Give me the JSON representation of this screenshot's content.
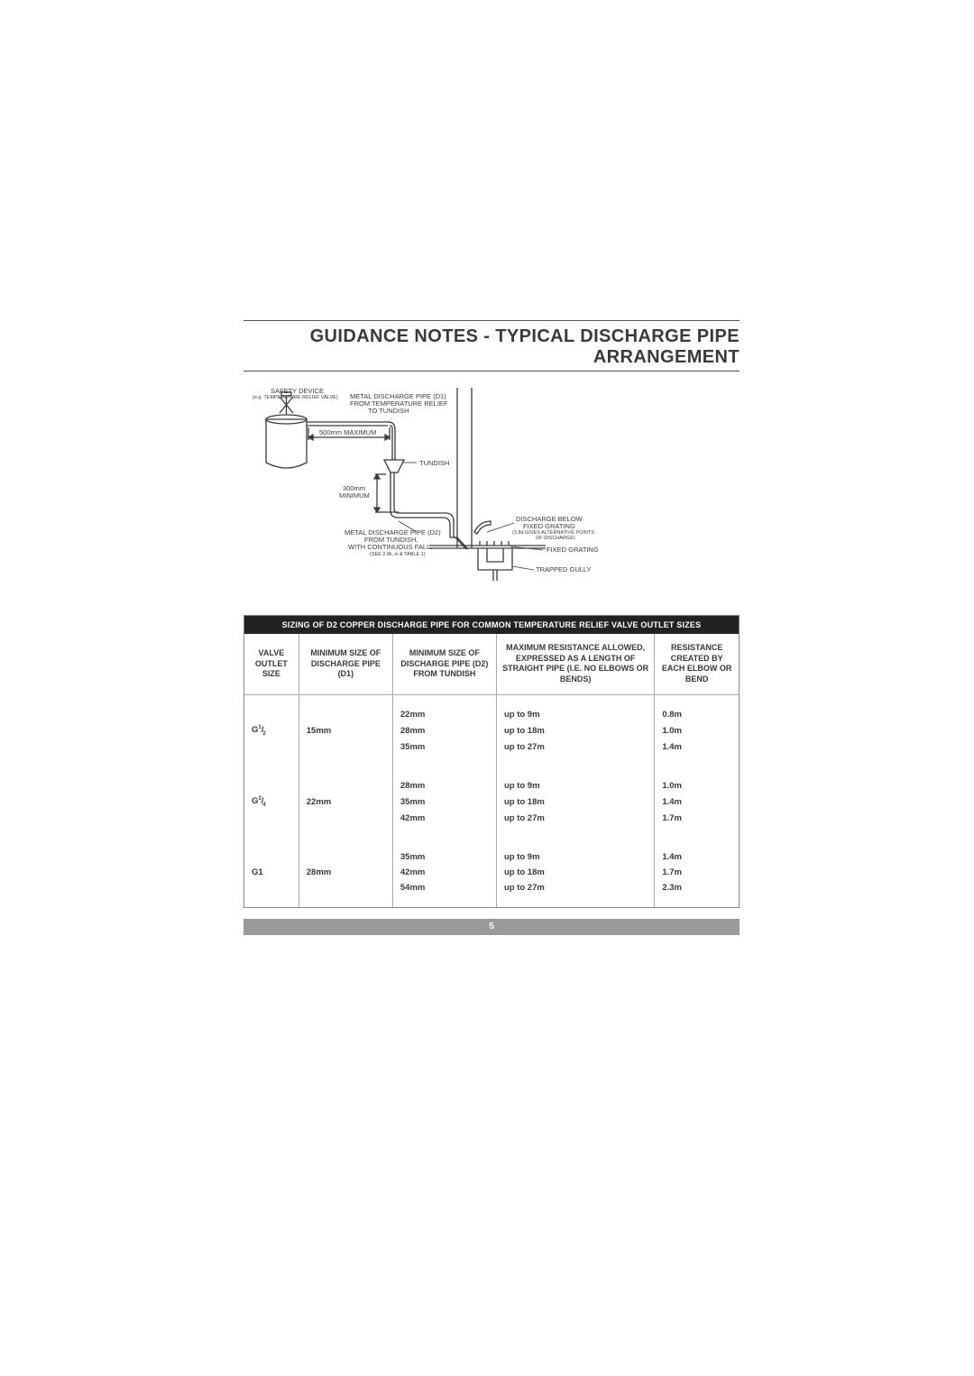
{
  "title": "GUIDANCE NOTES - TYPICAL DISCHARGE PIPE ARRANGEMENT",
  "diagram": {
    "safety_device": "SAFETY DEVICE",
    "safety_device_note": "(e.g. TEMPERATURE RELIEF VALVE)",
    "d1_label_1": "METAL DISCHARGE PIPE (D1)",
    "d1_label_2": "FROM TEMPERATURE RELIEF",
    "d1_label_3": "TO TUNDISH",
    "max_label": "500mm MAXIMUM",
    "tundish": "TUNDISH",
    "min_label_1": "300mm",
    "min_label_2": "MINIMUM",
    "d2_label_1": "METAL DISCHARGE PIPE (D2)",
    "d2_label_2": "FROM TUNDISH,",
    "d2_label_3": "WITH CONTINUOUS FALL.",
    "d2_note": "(SEE 2.8ii, iv & TABLE 1)",
    "discharge_below_1": "DISCHARGE BELOW",
    "discharge_below_2": "FIXED GRATING",
    "discharge_below_note": "(3.8d GIVES ALTERNATIVE POINTS",
    "discharge_below_note2": "OF DISCHARGE)",
    "fixed_grating": "FIXED GRATING",
    "trapped_gully": "TRAPPED GULLY",
    "stroke": "#3a3a3a"
  },
  "table": {
    "header_bar": "SIZING OF D2 COPPER DISCHARGE PIPE FOR COMMON TEMPERATURE RELIEF VALVE OUTLET SIZES",
    "columns": [
      "Valve Outlet Size",
      "Minimum Size of Discharge Pipe (D1)",
      "Minimum Size of Discharge Pipe (D2) From Tundish",
      "Maximum Resistance Allowed, Expressed as a Length of Straight Pipe (i.e. No Elbows or Bends)",
      "Resistance Created by Each Elbow or Bend"
    ],
    "groups": [
      {
        "valve": "G",
        "frac_n": "1",
        "frac_d": "2",
        "d1": "15mm",
        "rows": [
          {
            "d2": "22mm",
            "max": "up to 9m",
            "res": "0.8m"
          },
          {
            "d2": "28mm",
            "max": "up to 18m",
            "res": "1.0m"
          },
          {
            "d2": "35mm",
            "max": "up to 27m",
            "res": "1.4m"
          }
        ]
      },
      {
        "valve": "G",
        "frac_n": "3",
        "frac_d": "4",
        "d1": "22mm",
        "rows": [
          {
            "d2": "28mm",
            "max": "up to 9m",
            "res": "1.0m"
          },
          {
            "d2": "35mm",
            "max": "up to 18m",
            "res": "1.4m"
          },
          {
            "d2": "42mm",
            "max": "up to 27m",
            "res": "1.7m"
          }
        ]
      },
      {
        "valve": "G1",
        "frac_n": "",
        "frac_d": "",
        "d1": "28mm",
        "rows": [
          {
            "d2": "35mm",
            "max": "up to 9m",
            "res": "1.4m"
          },
          {
            "d2": "42mm",
            "max": "up to 18m",
            "res": "1.7m"
          },
          {
            "d2": "54mm",
            "max": "up to 27m",
            "res": "2.3m"
          }
        ]
      }
    ]
  },
  "page_number": "5"
}
